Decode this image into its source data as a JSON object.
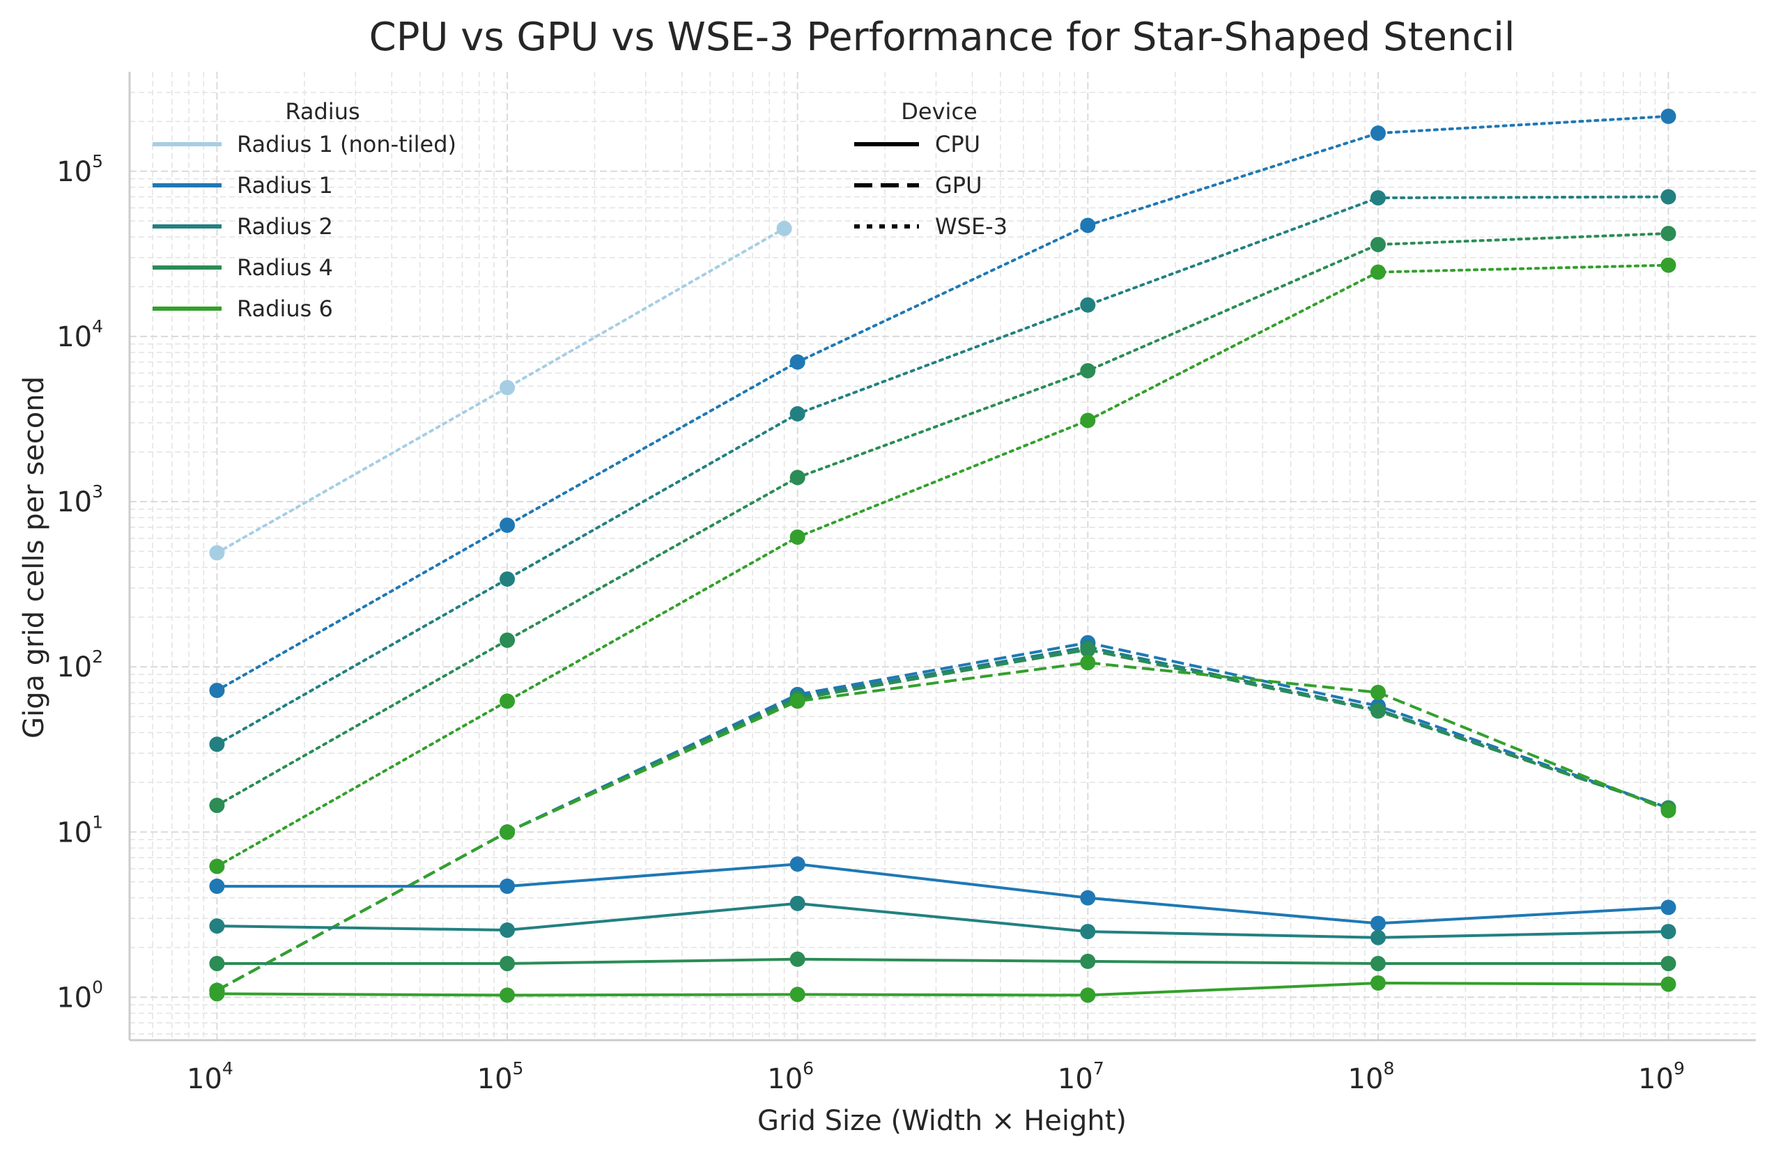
{
  "chart_data": {
    "type": "line",
    "title": "CPU vs GPU vs WSE-3 Performance for Star-Shaped Stencil",
    "xlabel": "Grid Size (Width × Height)",
    "ylabel": "Giga grid cells per second",
    "xscale": "log",
    "yscale": "log",
    "xlim": [
      5000,
      2000000000
    ],
    "ylim": [
      0.55,
      400000
    ],
    "x_ticks": [
      {
        "base": "10",
        "exp": "4",
        "value": 10000
      },
      {
        "base": "10",
        "exp": "5",
        "value": 100000
      },
      {
        "base": "10",
        "exp": "6",
        "value": 1000000
      },
      {
        "base": "10",
        "exp": "7",
        "value": 10000000
      },
      {
        "base": "10",
        "exp": "8",
        "value": 100000000
      },
      {
        "base": "10",
        "exp": "9",
        "value": 1000000000
      }
    ],
    "y_ticks": [
      {
        "base": "10",
        "exp": "0",
        "value": 1
      },
      {
        "base": "10",
        "exp": "1",
        "value": 10
      },
      {
        "base": "10",
        "exp": "2",
        "value": 100
      },
      {
        "base": "10",
        "exp": "3",
        "value": 1000
      },
      {
        "base": "10",
        "exp": "4",
        "value": 10000
      },
      {
        "base": "10",
        "exp": "5",
        "value": 100000
      }
    ],
    "grid": true,
    "colors": {
      "radius_1_non_tiled": "#a6cee3",
      "radius_1": "#1f78b4",
      "radius_2": "#238081",
      "radius_4": "#2b8c55",
      "radius_6": "#33a02c"
    },
    "legends": [
      {
        "title": "Radius",
        "placement": "top-left",
        "entries": [
          {
            "label": "Radius 1 (non-tiled)",
            "color": "#a6cee3",
            "style": "solid"
          },
          {
            "label": "Radius 1",
            "color": "#1f78b4",
            "style": "solid"
          },
          {
            "label": "Radius 2",
            "color": "#238081",
            "style": "solid"
          },
          {
            "label": "Radius 4",
            "color": "#2b8c55",
            "style": "solid"
          },
          {
            "label": "Radius 6",
            "color": "#33a02c",
            "style": "solid"
          }
        ]
      },
      {
        "title": "Device",
        "placement": "top-center",
        "entries": [
          {
            "label": "CPU",
            "color": "#000000",
            "style": "solid"
          },
          {
            "label": "GPU",
            "color": "#000000",
            "style": "dashed"
          },
          {
            "label": "WSE-3",
            "color": "#000000",
            "style": "dotted"
          }
        ]
      }
    ],
    "series": [
      {
        "radius": "Radius 1 (non-tiled)",
        "device": "WSE-3",
        "color": "#a6cee3",
        "style": "dotted",
        "x": [
          10000,
          100000,
          900000
        ],
        "y": [
          490,
          4900,
          45000
        ]
      },
      {
        "radius": "Radius 1",
        "device": "WSE-3",
        "color": "#1f78b4",
        "style": "dotted",
        "x": [
          10000,
          100000,
          1000000,
          10000000,
          100000000,
          1000000000
        ],
        "y": [
          72,
          720,
          7000,
          47000,
          170000,
          215000
        ]
      },
      {
        "radius": "Radius 2",
        "device": "WSE-3",
        "color": "#238081",
        "style": "dotted",
        "x": [
          10000,
          100000,
          1000000,
          10000000,
          100000000,
          1000000000
        ],
        "y": [
          34,
          340,
          3400,
          15500,
          69000,
          70000
        ]
      },
      {
        "radius": "Radius 4",
        "device": "WSE-3",
        "color": "#2b8c55",
        "style": "dotted",
        "x": [
          10000,
          100000,
          1000000,
          10000000,
          100000000,
          1000000000
        ],
        "y": [
          14.5,
          145,
          1400,
          6200,
          36000,
          42000
        ]
      },
      {
        "radius": "Radius 6",
        "device": "WSE-3",
        "color": "#33a02c",
        "style": "dotted",
        "x": [
          10000,
          100000,
          1000000,
          10000000,
          100000000,
          1000000000
        ],
        "y": [
          6.2,
          62,
          610,
          3100,
          24500,
          27000
        ]
      },
      {
        "radius": "Radius 1",
        "device": "GPU",
        "color": "#1f78b4",
        "style": "dashed",
        "x": [
          10000,
          100000,
          1000000,
          10000000,
          100000000,
          1000000000
        ],
        "y": [
          1.1,
          10,
          68,
          140,
          58,
          14
        ]
      },
      {
        "radius": "Radius 2",
        "device": "GPU",
        "color": "#238081",
        "style": "dashed",
        "x": [
          10000,
          100000,
          1000000,
          10000000,
          100000000,
          1000000000
        ],
        "y": [
          1.1,
          10,
          66,
          132,
          55,
          14
        ]
      },
      {
        "radius": "Radius 4",
        "device": "GPU",
        "color": "#2b8c55",
        "style": "dashed",
        "x": [
          10000,
          100000,
          1000000,
          10000000,
          100000000,
          1000000000
        ],
        "y": [
          1.1,
          10,
          64,
          127,
          54,
          14
        ]
      },
      {
        "radius": "Radius 6",
        "device": "GPU",
        "color": "#33a02c",
        "style": "dashed",
        "x": [
          10000,
          100000,
          1000000,
          10000000,
          100000000,
          1000000000
        ],
        "y": [
          1.1,
          10,
          62,
          106,
          70,
          13.5
        ]
      },
      {
        "radius": "Radius 1",
        "device": "CPU",
        "color": "#1f78b4",
        "style": "solid",
        "x": [
          10000,
          100000,
          1000000,
          10000000,
          100000000,
          1000000000
        ],
        "y": [
          4.7,
          4.7,
          6.4,
          4.0,
          2.8,
          3.5
        ]
      },
      {
        "radius": "Radius 2",
        "device": "CPU",
        "color": "#238081",
        "style": "solid",
        "x": [
          10000,
          100000,
          1000000,
          10000000,
          100000000,
          1000000000
        ],
        "y": [
          2.7,
          2.55,
          3.7,
          2.5,
          2.3,
          2.5
        ]
      },
      {
        "radius": "Radius 4",
        "device": "CPU",
        "color": "#2b8c55",
        "style": "solid",
        "x": [
          10000,
          100000,
          1000000,
          10000000,
          100000000,
          1000000000
        ],
        "y": [
          1.6,
          1.6,
          1.7,
          1.65,
          1.6,
          1.6
        ]
      },
      {
        "radius": "Radius 6",
        "device": "CPU",
        "color": "#33a02c",
        "style": "solid",
        "x": [
          10000,
          100000,
          1000000,
          10000000,
          100000000,
          1000000000
        ],
        "y": [
          1.05,
          1.03,
          1.04,
          1.03,
          1.22,
          1.2
        ]
      }
    ]
  }
}
